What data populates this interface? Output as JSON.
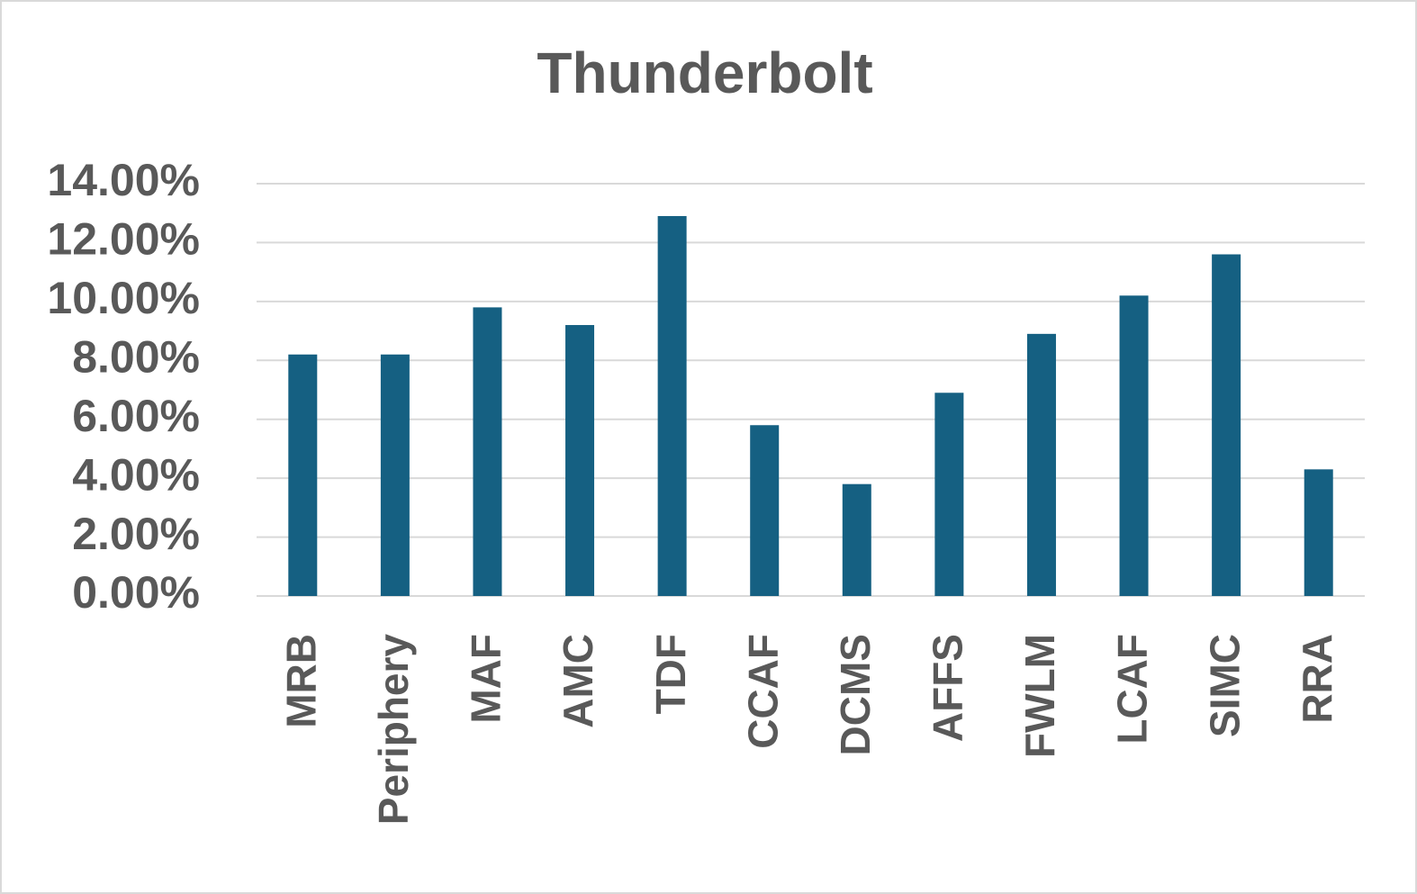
{
  "chart_data": {
    "type": "bar",
    "title": "Thunderbolt",
    "categories": [
      "MRB",
      "Periphery",
      "MAF",
      "AMC",
      "TDF",
      "CCAF",
      "DCMS",
      "AFFS",
      "FWLM",
      "LCAF",
      "SIMC",
      "RRA"
    ],
    "values": [
      8.2,
      8.2,
      9.8,
      9.2,
      12.9,
      5.8,
      3.8,
      6.9,
      8.9,
      10.2,
      11.6,
      4.3
    ],
    "color": "#156082",
    "ylim": [
      0,
      14
    ],
    "yticks": [
      {
        "value": 0,
        "label": "0.00%"
      },
      {
        "value": 2,
        "label": "2.00%"
      },
      {
        "value": 4,
        "label": "4.00%"
      },
      {
        "value": 6,
        "label": "6.00%"
      },
      {
        "value": 8,
        "label": "8.00%"
      },
      {
        "value": 10,
        "label": "10.00%"
      },
      {
        "value": 12,
        "label": "12.00%"
      },
      {
        "value": 14,
        "label": "14.00%"
      }
    ],
    "grid": true
  }
}
